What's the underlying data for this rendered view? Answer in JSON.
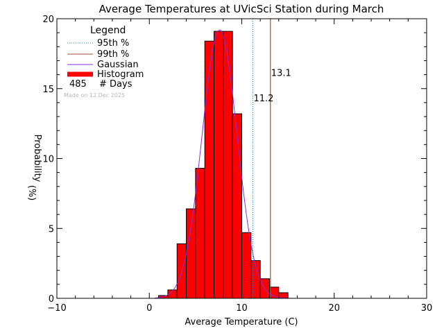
{
  "chart_data": {
    "type": "bar",
    "title": "Average Temperatures at UVicSci Station during March",
    "xlabel": "Average Temperature (C)",
    "ylabel": "Probability",
    "ylabel_unit": "(%)",
    "xlim": [
      -10,
      30
    ],
    "ylim": [
      0,
      20
    ],
    "xticks": [
      -10,
      0,
      10,
      20,
      30
    ],
    "yticks": [
      0,
      5,
      10,
      15,
      20
    ],
    "bin_width": 1,
    "bins": [
      {
        "x0": 1,
        "value": 0.2
      },
      {
        "x0": 2,
        "value": 0.6
      },
      {
        "x0": 3,
        "value": 3.9
      },
      {
        "x0": 4,
        "value": 6.4
      },
      {
        "x0": 5,
        "value": 9.3
      },
      {
        "x0": 6,
        "value": 18.4
      },
      {
        "x0": 7,
        "value": 19.1
      },
      {
        "x0": 8,
        "value": 19.1
      },
      {
        "x0": 9,
        "value": 13.2
      },
      {
        "x0": 10,
        "value": 4.7
      },
      {
        "x0": 11,
        "value": 2.7
      },
      {
        "x0": 12,
        "value": 1.4
      },
      {
        "x0": 13,
        "value": 0.8
      },
      {
        "x0": 14,
        "value": 0.4
      }
    ],
    "gaussian": {
      "mean": 7.6,
      "peak": 19.2,
      "sigma": 1.9
    },
    "percentile_95": {
      "value": 11.2,
      "label": "11.2"
    },
    "percentile_99": {
      "value": 13.1,
      "label": "13.1"
    },
    "legend": {
      "title": "Legend",
      "position": "top-left",
      "items": [
        {
          "label": "95th %",
          "style": "dotted",
          "color": "#1e7fd6"
        },
        {
          "label": "99th %",
          "style": "solid",
          "color": "#a0522d"
        },
        {
          "label": "Gaussian",
          "style": "solid",
          "color": "#8a2be2"
        },
        {
          "label": "Histogram",
          "style": "thick",
          "color": "#ff0000"
        }
      ],
      "count_value": "485",
      "count_label": "# Days"
    },
    "watermark": "Made on 12 Dec 2025",
    "colors": {
      "histogram": "#ff0000",
      "gaussian": "#8a2be2",
      "p95": "#1e7fd6",
      "p99": "#a0522d",
      "watermark": "#b8b8b8"
    }
  }
}
